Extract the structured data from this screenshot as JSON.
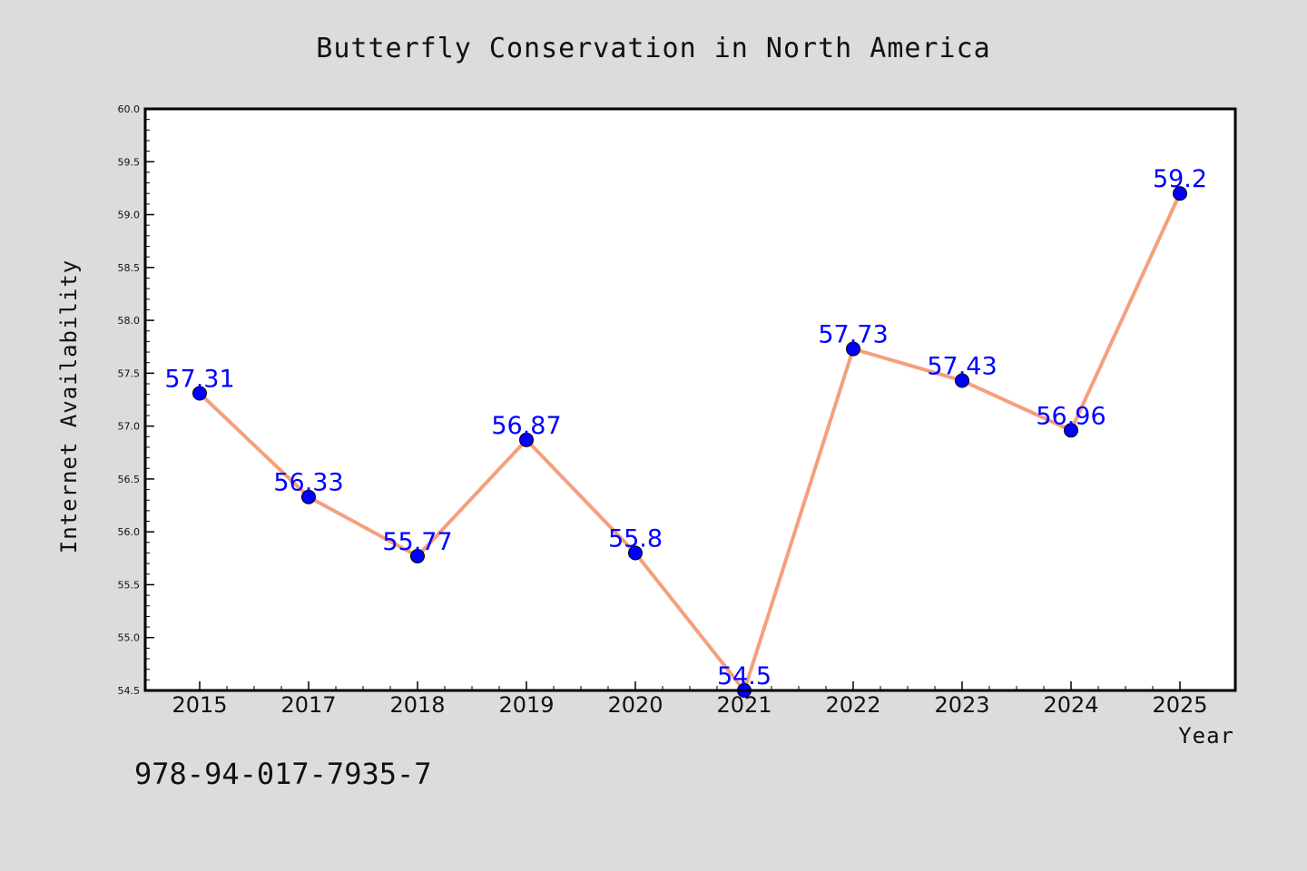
{
  "chart_data": {
    "type": "line",
    "title": "Butterfly Conservation in North America",
    "xlabel": "Year",
    "ylabel": "Internet Availability",
    "categories": [
      "2015",
      "2017",
      "2018",
      "2019",
      "2020",
      "2021",
      "2022",
      "2023",
      "2024",
      "2025"
    ],
    "values": [
      57.31,
      56.33,
      55.77,
      56.87,
      55.8,
      54.5,
      57.73,
      57.43,
      56.96,
      59.2
    ],
    "data_labels": [
      "57.31",
      "56.33",
      "55.77",
      "56.87",
      "55.8",
      "54.5",
      "57.73",
      "57.43",
      "56.96",
      "59.2"
    ],
    "ylim": [
      54.5,
      60.0
    ],
    "yticks": [
      "54.5",
      "55.0",
      "55.5",
      "56.0",
      "56.5",
      "57.0",
      "57.5",
      "58.0",
      "58.5",
      "59.0",
      "59.5",
      "60.0"
    ],
    "grid": false,
    "legend": "none",
    "line_color": "#f4a07c",
    "marker_color": "#0000ff",
    "label_color": "#0000ff",
    "plot_background": "#ffffff",
    "figure_background": "#dcdcdc"
  },
  "annotation": "978-94-017-7935-7"
}
